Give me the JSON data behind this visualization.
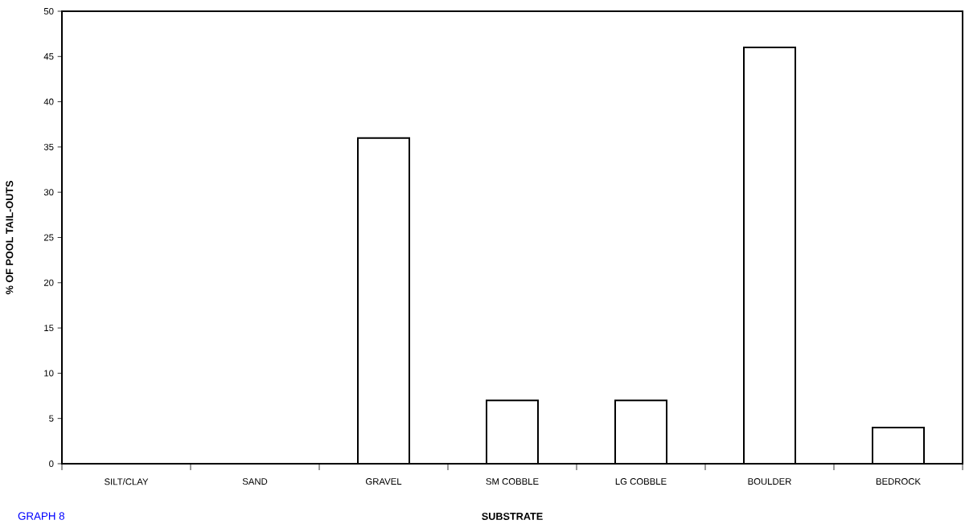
{
  "chart_data": {
    "type": "bar",
    "xlabel": "SUBSTRATE",
    "ylabel": "% OF POOL TAIL-OUTS",
    "categories": [
      "SILT/CLAY",
      "SAND",
      "GRAVEL",
      "SM COBBLE",
      "LG COBBLE",
      "BOULDER",
      "BEDROCK"
    ],
    "values": [
      0,
      0,
      36,
      7,
      7,
      46,
      4
    ],
    "color": "#000000",
    "ylim": [
      0,
      50
    ],
    "yticks": [
      0,
      5,
      10,
      15,
      20,
      25,
      30,
      35,
      40,
      45,
      50
    ],
    "grid": false,
    "annotations": [
      "GRAPH 8"
    ]
  }
}
